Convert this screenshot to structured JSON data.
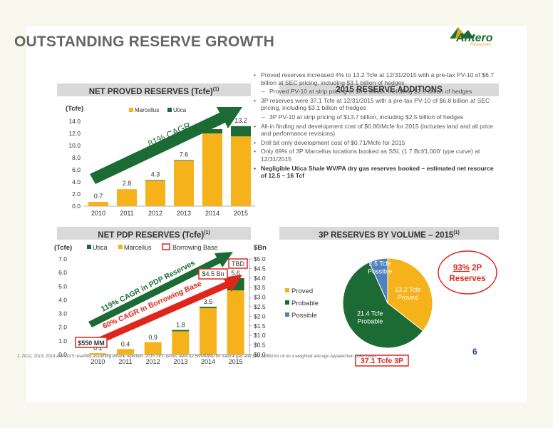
{
  "title": "OUTSTANDING RESERVE GROWTH",
  "logo": {
    "name": "Antero",
    "sub": "Resources"
  },
  "colors": {
    "gold": "#f5b21a",
    "green": "#1c6b34",
    "blue": "#4f81bd",
    "red": "#e0251b",
    "header_bg": "#d9d9d9"
  },
  "proved_panel": {
    "header": "NET PROVED RESERVES (Tcfe)",
    "header_sup": "(1)",
    "unit": "(Tcfe)",
    "cagr": "81% CAGR"
  },
  "additions_panel": {
    "header": "2015 RESERVE ADDITIONS",
    "bullets": [
      {
        "level": 1,
        "text": "Proved reserves increased 4% to 13.2 Tcfe at 12/31/2015 with a pre-tax PV-10 of $6.7 billion at SEC pricing, including $3.1 billion of hedges"
      },
      {
        "level": 2,
        "text": "Proved PV-10 at strip pricing of $8.2 billion, including $2.5 billion of hedges"
      },
      {
        "level": 1,
        "text": "3P reserves were 37.1 Tcfe at 12/31/2015 with a pre-tax PV-10 of $6.8 billion at SEC pricing, including $3.1 billion of hedges"
      },
      {
        "level": 2,
        "text": "3P PV-10 at strip pricing of $13.7 billion, including $2.5 billion of hedges"
      },
      {
        "level": 1,
        "text": "All-in finding and development cost of $0.80/Mcfe for 2015 (includes land and all price and performance revisions)"
      },
      {
        "level": 1,
        "text": "Drill bit only development cost of $0.71/Mcfe for 2015"
      },
      {
        "level": 1,
        "text": "Only 69% of 3P Marcellus locations booked as SSL (1.7 Bcf/1,000' type curve) at 12/31/2015"
      },
      {
        "level": 1,
        "bold": true,
        "text": "Negligible Utica Shale WV/PA dry gas reserves booked – estimated net resource of 12.5 – 16 Tcf"
      }
    ]
  },
  "pdp_panel": {
    "header": "NET PDP RESERVES (Tcfe)",
    "header_sup": "(1)",
    "unit_left": "(Tcfe)",
    "unit_right": "$Bn",
    "cagr_pdp": "119% CAGR in PDP Reserves",
    "cagr_bb": "60% CAGR in Borrowing Base",
    "tbd": "TBD",
    "bb_2014": "$4.5 Bn",
    "bb_2010": "$550 MM"
  },
  "volume_panel": {
    "header": "3P RESERVES BY VOLUME – 2015",
    "header_sup": "(1)",
    "callout_line1": "93% 2P",
    "callout_pct": "93%",
    "callout_line2": "Reserves",
    "total": "37.1 Tcfe 3P"
  },
  "chart_data": [
    {
      "type": "bar",
      "title": "NET PROVED RESERVES (Tcfe)",
      "ylabel": "(Tcfe)",
      "categories": [
        "2010",
        "2011",
        "2012",
        "2013",
        "2014",
        "2015"
      ],
      "series": [
        {
          "name": "Marcellus",
          "color": "#f5b21a",
          "values": [
            0.7,
            2.8,
            4.2,
            7.5,
            12.0,
            11.5
          ]
        },
        {
          "name": "Utica",
          "color": "#1c6b34",
          "values": [
            0,
            0,
            0.1,
            0.1,
            0.7,
            1.7
          ]
        }
      ],
      "totals": [
        "0.7",
        "2.8",
        "4.3",
        "7.6",
        "12.7",
        "13.2"
      ],
      "ylim": [
        0,
        14
      ],
      "yticks": [
        "0.0",
        "2.0",
        "4.0",
        "6.0",
        "8.0",
        "10.0",
        "12.0",
        "14.0"
      ]
    },
    {
      "type": "bar",
      "title": "NET PDP RESERVES (Tcfe)",
      "ylabel": "(Tcfe)",
      "y2label": "$Bn",
      "categories": [
        "2010",
        "2011",
        "2012",
        "2013",
        "2014",
        "2015"
      ],
      "series": [
        {
          "name": "Utica",
          "color": "#1c6b34",
          "values": [
            0,
            0,
            0,
            0.1,
            0.1,
            0.9
          ]
        },
        {
          "name": "Marcellus",
          "color": "#f5b21a",
          "values": [
            0.1,
            0.4,
            0.9,
            1.7,
            3.4,
            4.7
          ]
        },
        {
          "name": "Borrowing Base",
          "color": "#e0251b",
          "values": [
            0.55,
            null,
            null,
            null,
            4.5,
            null
          ]
        }
      ],
      "totals": [
        "0.1",
        "0.4",
        "0.9",
        "1.8",
        "3.5",
        "5.6"
      ],
      "ylim": [
        0,
        7
      ],
      "yticks": [
        "0.0",
        "1.0",
        "2.0",
        "3.0",
        "4.0",
        "5.0",
        "6.0",
        "7.0"
      ],
      "y2ticks": [
        "$0.0",
        "$0.5",
        "$1.0",
        "$1.5",
        "$2.0",
        "$2.5",
        "$3.0",
        "$3.5",
        "$4.0",
        "$4.5",
        "$5.0"
      ]
    },
    {
      "type": "pie",
      "title": "3P RESERVES BY VOLUME – 2015",
      "slices": [
        {
          "name": "Proved",
          "value": 13.2,
          "label_line1": "13.2 Tcfe",
          "label_line2": "Proved",
          "color": "#f5b21a"
        },
        {
          "name": "Probable",
          "value": 21.4,
          "label_line1": "21.4 Tcfe",
          "label_line2": "Probable",
          "color": "#1c6b34"
        },
        {
          "name": "Possible",
          "value": 2.5,
          "label_line1": "2.5 Tcfe",
          "label_line2": "Possible",
          "color": "#4f81bd"
        }
      ]
    }
  ],
  "page_number": "6",
  "footnote": "1.  2012, 2013, 2014 and 2015 reserves assuming ethane rejection. 2015 SEC prices were $2.56/MMBtu for natural gas and $50.13/Bbl for oil on a weighted average Appalachian index basis."
}
